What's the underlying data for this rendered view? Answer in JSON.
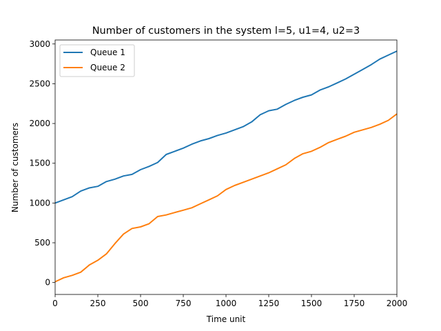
{
  "chart_data": {
    "type": "line",
    "title": "Number of customers in the system l=5, u1=4, u2=3",
    "xlabel": "Time unit",
    "ylabel": "Number of customers",
    "xlim": [
      0,
      2000
    ],
    "ylim": [
      -150,
      3050
    ],
    "xticks": [
      0,
      250,
      500,
      750,
      1000,
      1250,
      1500,
      1750,
      2000
    ],
    "yticks": [
      0,
      500,
      1000,
      1500,
      2000,
      2500,
      3000
    ],
    "grid": false,
    "legend_position": "top-left",
    "series": [
      {
        "name": "Queue 1",
        "color": "#1f77b4",
        "x": [
          0,
          50,
          100,
          150,
          200,
          250,
          300,
          350,
          400,
          450,
          500,
          550,
          600,
          650,
          700,
          750,
          800,
          850,
          900,
          950,
          1000,
          1050,
          1100,
          1150,
          1200,
          1250,
          1300,
          1350,
          1400,
          1450,
          1500,
          1550,
          1600,
          1650,
          1700,
          1750,
          1800,
          1850,
          1900,
          1950,
          2000
        ],
        "y": [
          1000,
          1040,
          1080,
          1150,
          1190,
          1210,
          1270,
          1300,
          1340,
          1360,
          1420,
          1460,
          1510,
          1610,
          1650,
          1690,
          1740,
          1780,
          1810,
          1850,
          1880,
          1920,
          1960,
          2020,
          2110,
          2160,
          2180,
          2240,
          2290,
          2330,
          2360,
          2420,
          2460,
          2510,
          2560,
          2620,
          2680,
          2740,
          2810,
          2860,
          2910
        ]
      },
      {
        "name": "Queue 2",
        "color": "#ff7f0e",
        "x": [
          0,
          50,
          100,
          150,
          200,
          250,
          300,
          350,
          400,
          450,
          500,
          550,
          600,
          650,
          700,
          750,
          800,
          850,
          900,
          950,
          1000,
          1050,
          1100,
          1150,
          1200,
          1250,
          1300,
          1350,
          1400,
          1450,
          1500,
          1550,
          1600,
          1650,
          1700,
          1750,
          1800,
          1850,
          1900,
          1950,
          2000
        ],
        "y": [
          10,
          60,
          90,
          130,
          220,
          280,
          360,
          490,
          610,
          680,
          700,
          740,
          830,
          850,
          880,
          910,
          940,
          990,
          1040,
          1090,
          1170,
          1220,
          1260,
          1300,
          1340,
          1380,
          1430,
          1480,
          1560,
          1620,
          1650,
          1700,
          1760,
          1800,
          1840,
          1890,
          1920,
          1950,
          1990,
          2040,
          2120
        ]
      }
    ]
  }
}
